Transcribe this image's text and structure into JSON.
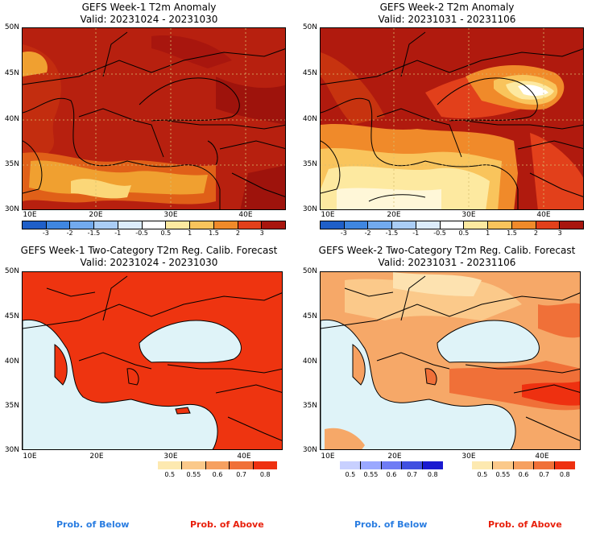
{
  "chart_data": [
    {
      "type": "heatmap",
      "title": "GEFS Week-1 T2m Anomaly",
      "subtitle": "Valid: 20231024 - 20231030",
      "xticks": [
        "10E",
        "20E",
        "30E",
        "40E"
      ],
      "yticks": [
        "50N",
        "45N",
        "40N",
        "35N",
        "30N"
      ],
      "colorbar": {
        "ticks": [
          "-3",
          "-2",
          "-1.5",
          "-1",
          "-0.5",
          "0.5",
          "1",
          "1.5",
          "2",
          "3"
        ],
        "colors": [
          "#1f5fc8",
          "#3f86e0",
          "#72aaee",
          "#aacdf5",
          "#dcecfb",
          "#ffffff",
          "#fde9a0",
          "#f9c45c",
          "#f08a2a",
          "#e2401b",
          "#a8160e"
        ]
      }
    },
    {
      "type": "heatmap",
      "title": "GEFS Week-2 T2m Anomaly",
      "subtitle": "Valid: 20231031 - 20231106",
      "xticks": [
        "10E",
        "20E",
        "30E",
        "40E"
      ],
      "yticks": [
        "50N",
        "45N",
        "40N",
        "35N",
        "30N"
      ],
      "colorbar": {
        "ticks": [
          "-3",
          "-2",
          "-1.5",
          "-1",
          "-0.5",
          "0.5",
          "1",
          "1.5",
          "2",
          "3"
        ],
        "colors": [
          "#1f5fc8",
          "#3f86e0",
          "#72aaee",
          "#aacdf5",
          "#dcecfb",
          "#ffffff",
          "#fde9a0",
          "#f9c45c",
          "#f08a2a",
          "#e2401b",
          "#a8160e"
        ]
      }
    },
    {
      "type": "heatmap",
      "title": "GEFS Week-1 Two-Category T2m Reg. Calib. Forecast",
      "subtitle": "Valid: 20231024 - 20231030",
      "xticks": [
        "10E",
        "20E",
        "30E",
        "40E"
      ],
      "yticks": [
        "50N",
        "45N",
        "40N",
        "35N",
        "30N"
      ],
      "colorbar_above": {
        "ticks": [
          "0.5",
          "0.55",
          "0.6",
          "0.7",
          "0.8"
        ],
        "colors": [
          "#fde9b0",
          "#fbc98a",
          "#f6a060",
          "#f07038",
          "#ee3010"
        ]
      },
      "legend_above": "Prob. of Above"
    },
    {
      "type": "heatmap",
      "title": "GEFS Week-2 Two-Category T2m Reg. Calib. Forecast",
      "subtitle": "Valid: 20231031 - 20231106",
      "xticks": [
        "10E",
        "20E",
        "30E",
        "40E"
      ],
      "yticks": [
        "50N",
        "45N",
        "40N",
        "35N",
        "30N"
      ],
      "colorbar_below": {
        "ticks": [
          "0.5",
          "0.55",
          "0.6",
          "0.7",
          "0.8"
        ],
        "colors": [
          "#c8d0ff",
          "#9aa8ff",
          "#6f7cf4",
          "#4050e0",
          "#1a1ad0"
        ]
      },
      "colorbar_above": {
        "ticks": [
          "0.5",
          "0.55",
          "0.6",
          "0.7",
          "0.8"
        ],
        "colors": [
          "#fde9b0",
          "#fbc98a",
          "#f6a060",
          "#f07038",
          "#ee3010"
        ]
      },
      "legend_below": "Prob. of Below",
      "legend_above": "Prob. of Above"
    }
  ],
  "colors": {
    "below_label": "#2a7de1",
    "above_label": "#e8200c",
    "sea_prob": "#dff3f8"
  },
  "bottom_labels": {
    "left_below": "Prob. of Below",
    "left_above": "Prob. of Above",
    "right_below": "Prob. of Below",
    "right_above": "Prob. of Above"
  }
}
